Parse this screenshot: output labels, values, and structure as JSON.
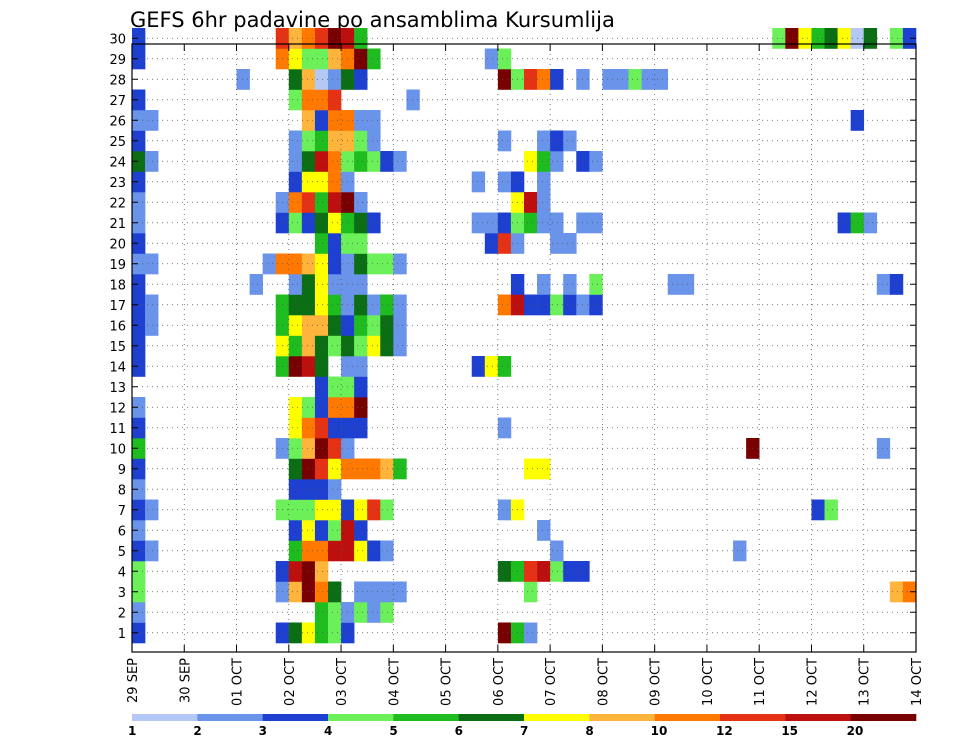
{
  "chart_data": {
    "type": "heatmap",
    "title": "GEFS 6hr padavine po ansamblima Kursumlija",
    "xlabel": "",
    "ylabel": "",
    "x_tick_labels": [
      "29 SEP",
      "30 SEP",
      "01 OCT",
      "02 OCT",
      "03 OCT",
      "04 OCT",
      "05 OCT",
      "06 OCT",
      "07 OCT",
      "08 OCT",
      "09 OCT",
      "10 OCT",
      "11 OCT",
      "12 OCT",
      "13 OCT",
      "14 OCT"
    ],
    "y_tick_labels": [
      "1",
      "2",
      "3",
      "4",
      "5",
      "6",
      "7",
      "8",
      "9",
      "10",
      "11",
      "12",
      "13",
      "14",
      "15",
      "16",
      "17",
      "18",
      "19",
      "20",
      "21",
      "22",
      "23",
      "24",
      "25",
      "26",
      "27",
      "28",
      "29",
      "30"
    ],
    "grid": true,
    "time_steps": 60,
    "levels": [
      {
        "label": "1",
        "color": "#b4c8f5"
      },
      {
        "label": "2",
        "color": "#6a93ea"
      },
      {
        "label": "3",
        "color": "#1e40d0"
      },
      {
        "label": "4",
        "color": "#6cf05a"
      },
      {
        "label": "5",
        "color": "#1ebc1e"
      },
      {
        "label": "6",
        "color": "#0b6e14"
      },
      {
        "label": "7",
        "color": "#ffff00"
      },
      {
        "label": "8",
        "color": "#ffb43c"
      },
      {
        "label": "10",
        "color": "#ff7800"
      },
      {
        "label": "12",
        "color": "#e63214"
      },
      {
        "label": "15",
        "color": "#be0f0f"
      },
      {
        "label": "20",
        "color": "#780000"
      }
    ],
    "colorbar_labels": [
      "1",
      "2",
      "3",
      "4",
      "5",
      "6",
      "7",
      "8",
      "10",
      "12",
      "15",
      "20"
    ],
    "members": {
      "30": [
        [
          0,
          2
        ],
        [
          11,
          9
        ],
        [
          12,
          7
        ],
        [
          13,
          8
        ],
        [
          14,
          9
        ],
        [
          15,
          11
        ],
        [
          16,
          10
        ],
        [
          17,
          4
        ],
        [
          49,
          3
        ],
        [
          50,
          11
        ],
        [
          51,
          6
        ],
        [
          52,
          4
        ],
        [
          53,
          5
        ],
        [
          54,
          6
        ],
        [
          55,
          0
        ],
        [
          56,
          5
        ],
        [
          58,
          3
        ],
        [
          59,
          2
        ]
      ],
      "29": [
        [
          0,
          2
        ],
        [
          11,
          8
        ],
        [
          12,
          6
        ],
        [
          13,
          3
        ],
        [
          14,
          3
        ],
        [
          15,
          7
        ],
        [
          16,
          8
        ],
        [
          17,
          11
        ],
        [
          18,
          4
        ],
        [
          27,
          1
        ],
        [
          28,
          3
        ]
      ],
      "28": [
        [
          8,
          1
        ],
        [
          12,
          5
        ],
        [
          13,
          7
        ],
        [
          14,
          0
        ],
        [
          15,
          1
        ],
        [
          16,
          5
        ],
        [
          17,
          2
        ],
        [
          28,
          11
        ],
        [
          29,
          3
        ],
        [
          30,
          9
        ],
        [
          31,
          8
        ],
        [
          32,
          2
        ],
        [
          34,
          1
        ],
        [
          36,
          1
        ],
        [
          37,
          1
        ],
        [
          38,
          3
        ],
        [
          39,
          1
        ],
        [
          40,
          1
        ]
      ],
      "27": [
        [
          0,
          2
        ],
        [
          12,
          3
        ],
        [
          13,
          8
        ],
        [
          14,
          8
        ],
        [
          15,
          9
        ],
        [
          21,
          1
        ]
      ],
      "26": [
        [
          0,
          1
        ],
        [
          1,
          1
        ],
        [
          13,
          7
        ],
        [
          14,
          2
        ],
        [
          15,
          8
        ],
        [
          16,
          8
        ],
        [
          17,
          1
        ],
        [
          18,
          1
        ],
        [
          55,
          2
        ]
      ],
      "25": [
        [
          0,
          2
        ],
        [
          12,
          1
        ],
        [
          13,
          3
        ],
        [
          14,
          4
        ],
        [
          15,
          7
        ],
        [
          16,
          7
        ],
        [
          17,
          3
        ],
        [
          18,
          1
        ],
        [
          28,
          1
        ],
        [
          31,
          1
        ],
        [
          32,
          2
        ],
        [
          33,
          1
        ]
      ],
      "24": [
        [
          0,
          5
        ],
        [
          1,
          1
        ],
        [
          12,
          1
        ],
        [
          13,
          5
        ],
        [
          14,
          10
        ],
        [
          15,
          8
        ],
        [
          16,
          3
        ],
        [
          17,
          4
        ],
        [
          18,
          3
        ],
        [
          19,
          2
        ],
        [
          20,
          1
        ],
        [
          30,
          6
        ],
        [
          31,
          4
        ],
        [
          32,
          1
        ],
        [
          34,
          2
        ],
        [
          35,
          1
        ]
      ],
      "23": [
        [
          0,
          2
        ],
        [
          12,
          2
        ],
        [
          13,
          6
        ],
        [
          14,
          6
        ],
        [
          15,
          8
        ],
        [
          16,
          1
        ],
        [
          26,
          1
        ],
        [
          28,
          1
        ],
        [
          29,
          2
        ],
        [
          31,
          1
        ]
      ],
      "22": [
        [
          0,
          1
        ],
        [
          11,
          1
        ],
        [
          12,
          8
        ],
        [
          13,
          9
        ],
        [
          14,
          4
        ],
        [
          15,
          10
        ],
        [
          16,
          11
        ],
        [
          17,
          1
        ],
        [
          29,
          6
        ],
        [
          30,
          10
        ],
        [
          31,
          1
        ]
      ],
      "21": [
        [
          0,
          1
        ],
        [
          11,
          2
        ],
        [
          12,
          3
        ],
        [
          13,
          2
        ],
        [
          14,
          5
        ],
        [
          15,
          6
        ],
        [
          16,
          4
        ],
        [
          17,
          5
        ],
        [
          18,
          2
        ],
        [
          26,
          1
        ],
        [
          27,
          1
        ],
        [
          28,
          2
        ],
        [
          29,
          3
        ],
        [
          30,
          4
        ],
        [
          31,
          1
        ],
        [
          32,
          1
        ],
        [
          34,
          1
        ],
        [
          35,
          1
        ],
        [
          54,
          2
        ],
        [
          55,
          4
        ],
        [
          56,
          1
        ]
      ],
      "20": [
        [
          0,
          2
        ],
        [
          14,
          4
        ],
        [
          15,
          2
        ],
        [
          16,
          3
        ],
        [
          17,
          3
        ],
        [
          27,
          2
        ],
        [
          28,
          9
        ],
        [
          29,
          1
        ],
        [
          32,
          1
        ],
        [
          33,
          1
        ]
      ],
      "19": [
        [
          0,
          1
        ],
        [
          1,
          1
        ],
        [
          10,
          1
        ],
        [
          11,
          8
        ],
        [
          12,
          8
        ],
        [
          13,
          7
        ],
        [
          14,
          6
        ],
        [
          15,
          2
        ],
        [
          16,
          1
        ],
        [
          17,
          5
        ],
        [
          18,
          3
        ],
        [
          19,
          3
        ],
        [
          20,
          1
        ]
      ],
      "18": [
        [
          0,
          2
        ],
        [
          9,
          1
        ],
        [
          12,
          1
        ],
        [
          13,
          5
        ],
        [
          14,
          6
        ],
        [
          15,
          1
        ],
        [
          16,
          1
        ],
        [
          17,
          1
        ],
        [
          29,
          2
        ],
        [
          31,
          1
        ],
        [
          33,
          1
        ],
        [
          35,
          3
        ],
        [
          41,
          1
        ],
        [
          42,
          1
        ],
        [
          57,
          1
        ],
        [
          58,
          2
        ]
      ],
      "17": [
        [
          0,
          2
        ],
        [
          1,
          1
        ],
        [
          11,
          4
        ],
        [
          12,
          5
        ],
        [
          13,
          5
        ],
        [
          14,
          6
        ],
        [
          15,
          4
        ],
        [
          16,
          1
        ],
        [
          17,
          5
        ],
        [
          18,
          1
        ],
        [
          19,
          4
        ],
        [
          20,
          1
        ],
        [
          28,
          8
        ],
        [
          29,
          10
        ],
        [
          30,
          2
        ],
        [
          31,
          2
        ],
        [
          32,
          3
        ],
        [
          33,
          2
        ],
        [
          34,
          1
        ],
        [
          35,
          2
        ]
      ],
      "16": [
        [
          0,
          2
        ],
        [
          1,
          1
        ],
        [
          11,
          4
        ],
        [
          12,
          6
        ],
        [
          13,
          7
        ],
        [
          14,
          7
        ],
        [
          15,
          5
        ],
        [
          16,
          2
        ],
        [
          17,
          4
        ],
        [
          18,
          3
        ],
        [
          19,
          5
        ],
        [
          20,
          1
        ]
      ],
      "15": [
        [
          0,
          2
        ],
        [
          11,
          6
        ],
        [
          12,
          4
        ],
        [
          13,
          7
        ],
        [
          14,
          5
        ],
        [
          15,
          3
        ],
        [
          16,
          5
        ],
        [
          17,
          3
        ],
        [
          18,
          6
        ],
        [
          19,
          5
        ],
        [
          20,
          1
        ]
      ],
      "14": [
        [
          0,
          2
        ],
        [
          11,
          4
        ],
        [
          12,
          11
        ],
        [
          13,
          10
        ],
        [
          14,
          5
        ],
        [
          16,
          1
        ],
        [
          17,
          1
        ],
        [
          26,
          2
        ],
        [
          27,
          6
        ],
        [
          28,
          4
        ]
      ],
      "13": [
        [
          14,
          2
        ],
        [
          15,
          3
        ],
        [
          16,
          3
        ],
        [
          17,
          2
        ]
      ],
      "12": [
        [
          0,
          1
        ],
        [
          12,
          6
        ],
        [
          13,
          3
        ],
        [
          14,
          2
        ],
        [
          15,
          8
        ],
        [
          16,
          8
        ],
        [
          17,
          11
        ]
      ],
      "11": [
        [
          0,
          2
        ],
        [
          12,
          6
        ],
        [
          13,
          8
        ],
        [
          14,
          9
        ],
        [
          15,
          2
        ],
        [
          16,
          2
        ],
        [
          17,
          2
        ],
        [
          28,
          1
        ]
      ],
      "10": [
        [
          0,
          4
        ],
        [
          11,
          1
        ],
        [
          12,
          3
        ],
        [
          13,
          7
        ],
        [
          14,
          11
        ],
        [
          15,
          9
        ],
        [
          16,
          1
        ],
        [
          47,
          11
        ],
        [
          57,
          1
        ]
      ],
      "9": [
        [
          0,
          2
        ],
        [
          12,
          5
        ],
        [
          13,
          11
        ],
        [
          14,
          9
        ],
        [
          15,
          6
        ],
        [
          16,
          8
        ],
        [
          17,
          8
        ],
        [
          18,
          8
        ],
        [
          19,
          7
        ],
        [
          20,
          4
        ],
        [
          30,
          6
        ],
        [
          31,
          6
        ]
      ],
      "8": [
        [
          0,
          1
        ],
        [
          12,
          2
        ],
        [
          13,
          2
        ],
        [
          14,
          2
        ],
        [
          15,
          1
        ]
      ],
      "7": [
        [
          0,
          2
        ],
        [
          1,
          1
        ],
        [
          11,
          3
        ],
        [
          12,
          3
        ],
        [
          13,
          3
        ],
        [
          14,
          6
        ],
        [
          15,
          6
        ],
        [
          16,
          2
        ],
        [
          17,
          6
        ],
        [
          18,
          9
        ],
        [
          19,
          3
        ],
        [
          28,
          1
        ],
        [
          29,
          6
        ],
        [
          52,
          2
        ],
        [
          53,
          3
        ]
      ],
      "6": [
        [
          0,
          1
        ],
        [
          12,
          2
        ],
        [
          13,
          6
        ],
        [
          14,
          2
        ],
        [
          15,
          3
        ],
        [
          16,
          10
        ],
        [
          17,
          2
        ],
        [
          31,
          1
        ]
      ],
      "5": [
        [
          0,
          2
        ],
        [
          1,
          1
        ],
        [
          12,
          4
        ],
        [
          13,
          8
        ],
        [
          14,
          8
        ],
        [
          15,
          10
        ],
        [
          16,
          10
        ],
        [
          17,
          6
        ],
        [
          18,
          2
        ],
        [
          19,
          1
        ],
        [
          32,
          1
        ],
        [
          46,
          1
        ]
      ],
      "4": [
        [
          0,
          3
        ],
        [
          11,
          2
        ],
        [
          12,
          10
        ],
        [
          13,
          11
        ],
        [
          14,
          7
        ],
        [
          28,
          5
        ],
        [
          29,
          4
        ],
        [
          30,
          9
        ],
        [
          31,
          10
        ],
        [
          32,
          3
        ],
        [
          33,
          2
        ],
        [
          34,
          2
        ]
      ],
      "3": [
        [
          0,
          3
        ],
        [
          11,
          1
        ],
        [
          12,
          7
        ],
        [
          13,
          11
        ],
        [
          14,
          8
        ],
        [
          15,
          5
        ],
        [
          17,
          1
        ],
        [
          18,
          1
        ],
        [
          19,
          1
        ],
        [
          20,
          1
        ],
        [
          30,
          3
        ],
        [
          58,
          7
        ],
        [
          59,
          8
        ]
      ],
      "2": [
        [
          0,
          1
        ],
        [
          14,
          4
        ],
        [
          15,
          3
        ],
        [
          16,
          1
        ],
        [
          17,
          3
        ],
        [
          18,
          1
        ],
        [
          19,
          3
        ]
      ],
      "1": [
        [
          0,
          2
        ],
        [
          11,
          2
        ],
        [
          12,
          5
        ],
        [
          13,
          6
        ],
        [
          14,
          4
        ],
        [
          15,
          3
        ],
        [
          16,
          2
        ],
        [
          28,
          11
        ],
        [
          29,
          4
        ],
        [
          30,
          1
        ]
      ]
    }
  }
}
